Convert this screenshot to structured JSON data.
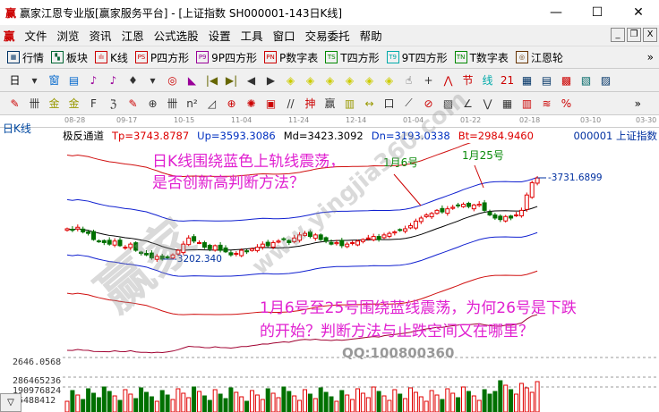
{
  "window": {
    "logo": "赢",
    "title": "赢家江恩专业版[赢家服务平台] - [上证指数  SH000001-143日K线]",
    "controls": [
      "—",
      "☐",
      "✕"
    ]
  },
  "menu": {
    "logo": "赢",
    "items": [
      "文件",
      "浏览",
      "资讯",
      "江恩",
      "公式选股",
      "设置",
      "工具",
      "窗口",
      "交易委托",
      "帮助"
    ],
    "mdi": [
      "_",
      "❐",
      "X"
    ]
  },
  "toolbar1": {
    "items": [
      {
        "icon": "▦",
        "label": "行情"
      },
      {
        "icon": "▚",
        "label": "板块"
      },
      {
        "icon": "ılı",
        "label": "K线"
      },
      {
        "icon": "PS",
        "label": "P四方形"
      },
      {
        "icon": "P9",
        "label": "9P四方形"
      },
      {
        "icon": "PN",
        "label": "P数字表"
      },
      {
        "icon": "TS",
        "label": "T四方形"
      },
      {
        "icon": "T9",
        "label": "9T四方形"
      },
      {
        "icon": "TN",
        "label": "T数字表"
      },
      {
        "icon": "◎",
        "label": "江恩轮"
      }
    ],
    "more": "»"
  },
  "toolbar2": {
    "period": "日",
    "glyphs": [
      "▾",
      "窗",
      "▤",
      "♪",
      "♪",
      "♦",
      "▾",
      "◎",
      "◣",
      "|◀",
      "▶|",
      "◀",
      "▶",
      "◈",
      "◈",
      "◈",
      "◈",
      "◈",
      "◈",
      "☝",
      "+",
      "⋀",
      "节",
      "线",
      "21",
      "▦",
      "▤",
      "▩",
      "▧",
      "▨"
    ]
  },
  "toolbar3": {
    "glyphs": [
      "✎",
      "卌",
      "金",
      "金",
      "F",
      "ℨ",
      "✎",
      "⊕",
      "卌",
      "n²",
      "◿",
      "⊕",
      "✺",
      "▣",
      "//",
      "抻",
      "赢",
      "▥",
      "↔",
      "口",
      "⟋",
      "⊘",
      "▧",
      "∠",
      "⋁",
      "▦",
      "▥",
      "≋",
      "%"
    ],
    "more": "»"
  },
  "date_axis": [
    "08-28",
    "09-17",
    "10-15",
    "11-04",
    "11-24",
    "12-14",
    "01-04",
    "01-22",
    "02-18",
    "03-10",
    "03-30"
  ],
  "chart_label": "日K线",
  "indicator": {
    "name": "极反通道",
    "tp": "Tp=3743.8787",
    "up": "Up=3593.3086",
    "md": "Md=3423.3092",
    "dn": "Dn=3193.0338",
    "bt": "Bt=2984.9460",
    "code": "000001 上证指数"
  },
  "levels": {
    "high": "-3731.6899",
    "low": "-3202.340"
  },
  "annotations": {
    "a1": "日K线围绕蓝色上轨线震荡，",
    "a2": "是否创新高判断方法？",
    "jan6": "1月6号",
    "jan25": "1月25号",
    "b1": "1月6号至25号围绕蓝线震荡，为何26号是下跌",
    "b2": "的开始？判断方法与止跌空间又在哪里？",
    "qq": "QQ:100800360"
  },
  "volume_axis": {
    "price": "2646.0568",
    "v1": "286465236",
    "v2": "190976824",
    "v3": "95488412"
  },
  "collapse": "▽",
  "watermark": {
    "big": "赢家",
    "url": "www.yingjia360.com"
  },
  "colors": {
    "up": "#e00000",
    "down": "#007000",
    "band_outer": "#d01010",
    "band_inner": "#1020d0",
    "mid": "#000000",
    "annotation": "#e020d0"
  },
  "chart_data": {
    "type": "candlestick",
    "x_axis": "date",
    "y_range": [
      3150,
      3900
    ],
    "closes": [
      3400,
      3390,
      3410,
      3380,
      3370,
      3330,
      3320,
      3310,
      3300,
      3320,
      3290,
      3280,
      3300,
      3260,
      3240,
      3230,
      3210,
      3220,
      3202,
      3215,
      3230,
      3260,
      3300,
      3340,
      3320,
      3310,
      3280,
      3270,
      3290,
      3260,
      3250,
      3230,
      3240,
      3260,
      3250,
      3270,
      3280,
      3300,
      3290,
      3310,
      3320,
      3330,
      3310,
      3340,
      3360,
      3370,
      3350,
      3360,
      3330,
      3320,
      3300,
      3310,
      3290,
      3300,
      3310,
      3320,
      3330,
      3340,
      3350,
      3330,
      3360,
      3370,
      3380,
      3390,
      3400,
      3420,
      3450,
      3470,
      3490,
      3500,
      3520,
      3510,
      3530,
      3540,
      3550,
      3560,
      3545,
      3555,
      3560,
      3520,
      3490,
      3470,
      3460,
      3480,
      3470,
      3490,
      3520,
      3620,
      3700,
      3731
    ]
  }
}
